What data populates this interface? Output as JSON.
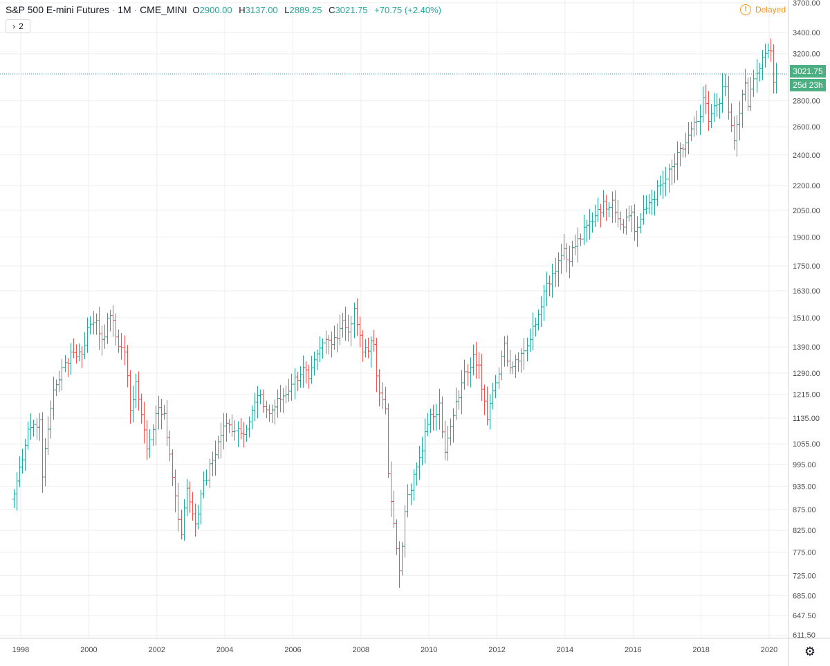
{
  "header": {
    "symbol_name": "S&P 500 E-mini Futures",
    "interval": "1M",
    "exchange": "CME_MINI",
    "open_label": "O",
    "open_value": "2900.00",
    "high_label": "H",
    "high_value": "3137.00",
    "low_label": "L",
    "low_value": "2889.25",
    "close_label": "C",
    "close_value": "3021.75",
    "change": "+70.75 (+2.40%)",
    "separator": "·"
  },
  "indicator_toggle": {
    "label": "2",
    "icon": "chevron-right-icon"
  },
  "status": {
    "delayed_label": "Delayed",
    "icon": "exclamation-circle-icon"
  },
  "price_badge": {
    "price": "3021.75",
    "countdown": "25d 23h",
    "color": "#4caf82"
  },
  "colors": {
    "up": "#26a69a",
    "down": "#ef5350",
    "grid": "#edeef1",
    "last_line": "#26a69a"
  },
  "settings": {
    "icon": "gear-icon"
  },
  "chart_data": {
    "type": "ohlc-bar",
    "scale": "log",
    "interval": "monthly",
    "y_ticks": [
      611.5,
      647.5,
      685.0,
      725.0,
      775.0,
      825.0,
      875.0,
      935.0,
      995.0,
      1055.0,
      1135.0,
      1215.0,
      1290.0,
      1390.0,
      1510.0,
      1630.0,
      1750.0,
      1900.0,
      2050.0,
      2200.0,
      2400.0,
      2600.0,
      2800.0,
      3200.0,
      3400.0,
      3700.0
    ],
    "y_tick_labels": [
      "611.50",
      "647.50",
      "685.00",
      "725.00",
      "775.00",
      "825.00",
      "875.00",
      "935.00",
      "995.00",
      "1055.00",
      "1135.00",
      "1215.00",
      "1290.00",
      "1390.00",
      "1510.00",
      "1630.00",
      "1750.00",
      "1900.00",
      "2050.00",
      "2200.00",
      "2400.00",
      "2600.00",
      "2800.00",
      "3200.00",
      "3400.00",
      "3700.00"
    ],
    "x_tick_labels": [
      "1998",
      "2000",
      "2002",
      "2004",
      "2006",
      "2008",
      "2010",
      "2012",
      "2014",
      "2016",
      "2018",
      "2020"
    ],
    "x_tick_years": [
      1998,
      2000,
      2002,
      2004,
      2006,
      2008,
      2010,
      2012,
      2014,
      2016,
      2018,
      2020
    ],
    "first_bar": "1997-10",
    "last_bar": "2020-03",
    "last_close": 3021.75,
    "grid": true,
    "close_path": [
      {
        "date": "1997-10",
        "close": 915
      },
      {
        "date": "1998-03",
        "close": 1100
      },
      {
        "date": "1998-07",
        "close": 1130
      },
      {
        "date": "1998-08",
        "close": 960
      },
      {
        "date": "1998-10",
        "close": 1100
      },
      {
        "date": "1998-12",
        "close": 1230
      },
      {
        "date": "1999-06",
        "close": 1370
      },
      {
        "date": "1999-10",
        "close": 1360
      },
      {
        "date": "1999-12",
        "close": 1470
      },
      {
        "date": "2000-03",
        "close": 1500
      },
      {
        "date": "2000-05",
        "close": 1420
      },
      {
        "date": "2000-08",
        "close": 1520
      },
      {
        "date": "2000-10",
        "close": 1430
      },
      {
        "date": "2001-01",
        "close": 1370
      },
      {
        "date": "2001-03",
        "close": 1160
      },
      {
        "date": "2001-05",
        "close": 1260
      },
      {
        "date": "2001-09",
        "close": 1040
      },
      {
        "date": "2001-12",
        "close": 1150
      },
      {
        "date": "2002-03",
        "close": 1150
      },
      {
        "date": "2002-07",
        "close": 910
      },
      {
        "date": "2002-09",
        "close": 815
      },
      {
        "date": "2002-11",
        "close": 930
      },
      {
        "date": "2003-02",
        "close": 840
      },
      {
        "date": "2003-04",
        "close": 915
      },
      {
        "date": "2003-12",
        "close": 1110
      },
      {
        "date": "2004-08",
        "close": 1100
      },
      {
        "date": "2004-12",
        "close": 1210
      },
      {
        "date": "2005-04",
        "close": 1150
      },
      {
        "date": "2005-12",
        "close": 1250
      },
      {
        "date": "2006-04",
        "close": 1310
      },
      {
        "date": "2006-06",
        "close": 1270
      },
      {
        "date": "2006-12",
        "close": 1420
      },
      {
        "date": "2007-02",
        "close": 1400
      },
      {
        "date": "2007-06",
        "close": 1500
      },
      {
        "date": "2007-08",
        "close": 1450
      },
      {
        "date": "2007-10",
        "close": 1550
      },
      {
        "date": "2008-01",
        "close": 1370
      },
      {
        "date": "2008-05",
        "close": 1400
      },
      {
        "date": "2008-06",
        "close": 1280
      },
      {
        "date": "2008-09",
        "close": 1165
      },
      {
        "date": "2008-10",
        "close": 970
      },
      {
        "date": "2008-11",
        "close": 895
      },
      {
        "date": "2009-02",
        "close": 735
      },
      {
        "date": "2009-04",
        "close": 870
      },
      {
        "date": "2009-12",
        "close": 1115
      },
      {
        "date": "2010-04",
        "close": 1185
      },
      {
        "date": "2010-06",
        "close": 1030
      },
      {
        "date": "2010-12",
        "close": 1255
      },
      {
        "date": "2011-04",
        "close": 1360
      },
      {
        "date": "2011-06",
        "close": 1320
      },
      {
        "date": "2011-09",
        "close": 1130
      },
      {
        "date": "2011-12",
        "close": 1255
      },
      {
        "date": "2012-03",
        "close": 1405
      },
      {
        "date": "2012-05",
        "close": 1310
      },
      {
        "date": "2012-12",
        "close": 1420
      },
      {
        "date": "2013-05",
        "close": 1630
      },
      {
        "date": "2013-12",
        "close": 1840
      },
      {
        "date": "2014-01",
        "close": 1780
      },
      {
        "date": "2014-12",
        "close": 2055
      },
      {
        "date": "2015-05",
        "close": 2110
      },
      {
        "date": "2015-08",
        "close": 1970
      },
      {
        "date": "2015-12",
        "close": 2040
      },
      {
        "date": "2016-01",
        "close": 1930
      },
      {
        "date": "2016-06",
        "close": 2095
      },
      {
        "date": "2016-12",
        "close": 2240
      },
      {
        "date": "2017-12",
        "close": 2675
      },
      {
        "date": "2018-01",
        "close": 2825
      },
      {
        "date": "2018-03",
        "close": 2640
      },
      {
        "date": "2018-09",
        "close": 2915
      },
      {
        "date": "2018-10",
        "close": 2710
      },
      {
        "date": "2018-12",
        "close": 2500
      },
      {
        "date": "2019-04",
        "close": 2945
      },
      {
        "date": "2019-05",
        "close": 2755
      },
      {
        "date": "2019-07",
        "close": 2980
      },
      {
        "date": "2019-12",
        "close": 3230
      },
      {
        "date": "2020-01",
        "close": 3225
      },
      {
        "date": "2020-02",
        "close": 2950
      },
      {
        "date": "2020-03",
        "close": 3021.75
      }
    ]
  }
}
